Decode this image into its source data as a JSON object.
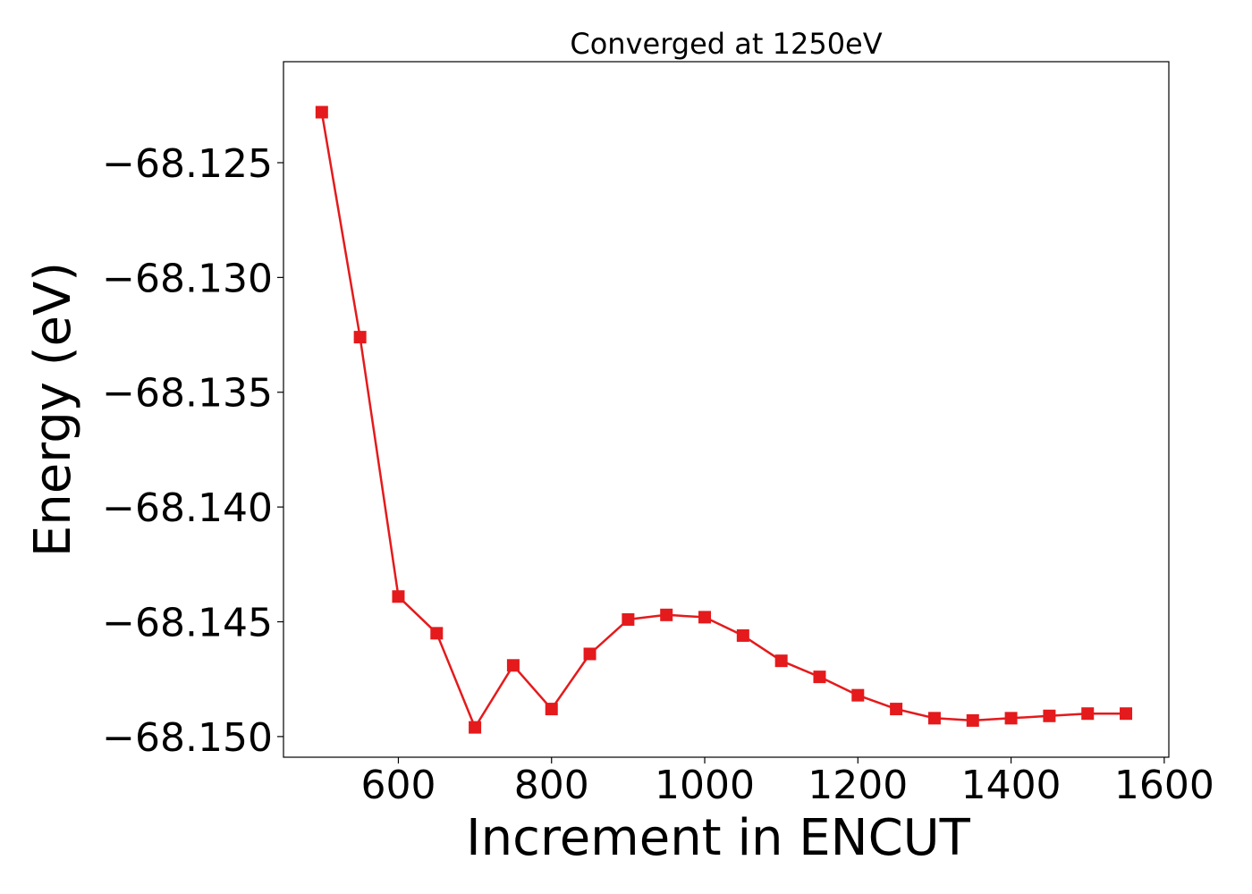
{
  "chart_data": {
    "type": "line",
    "title": "Converged at 1250eV",
    "xlabel": "Increment in ENCUT",
    "ylabel": "Energy (eV)",
    "xlim": [
      450,
      1606
    ],
    "ylim": [
      -68.1509,
      -68.1206
    ],
    "x_ticks": [
      600,
      800,
      1000,
      1200,
      1400,
      1600
    ],
    "x_tick_labels": [
      "600",
      "800",
      "1000",
      "1200",
      "1400",
      "1600"
    ],
    "y_ticks": [
      -68.125,
      -68.13,
      -68.135,
      -68.14,
      -68.145,
      -68.15
    ],
    "y_tick_labels": [
      "−68.125",
      "−68.130",
      "−68.135",
      "−68.140",
      "−68.145",
      "−68.150"
    ],
    "grid": false,
    "series": [
      {
        "color": "#e41a1c",
        "marker": "square",
        "x": [
          500,
          550,
          600,
          650,
          700,
          750,
          800,
          850,
          900,
          950,
          1000,
          1050,
          1100,
          1150,
          1200,
          1250,
          1300,
          1350,
          1400,
          1450,
          1500,
          1550
        ],
        "y": [
          -68.1228,
          -68.1326,
          -68.1439,
          -68.1455,
          -68.1496,
          -68.1469,
          -68.1488,
          -68.1464,
          -68.1449,
          -68.1447,
          -68.1448,
          -68.1456,
          -68.1467,
          -68.1474,
          -68.1482,
          -68.1488,
          -68.1492,
          -68.1493,
          -68.1492,
          -68.1491,
          -68.149,
          -68.149
        ]
      }
    ]
  }
}
